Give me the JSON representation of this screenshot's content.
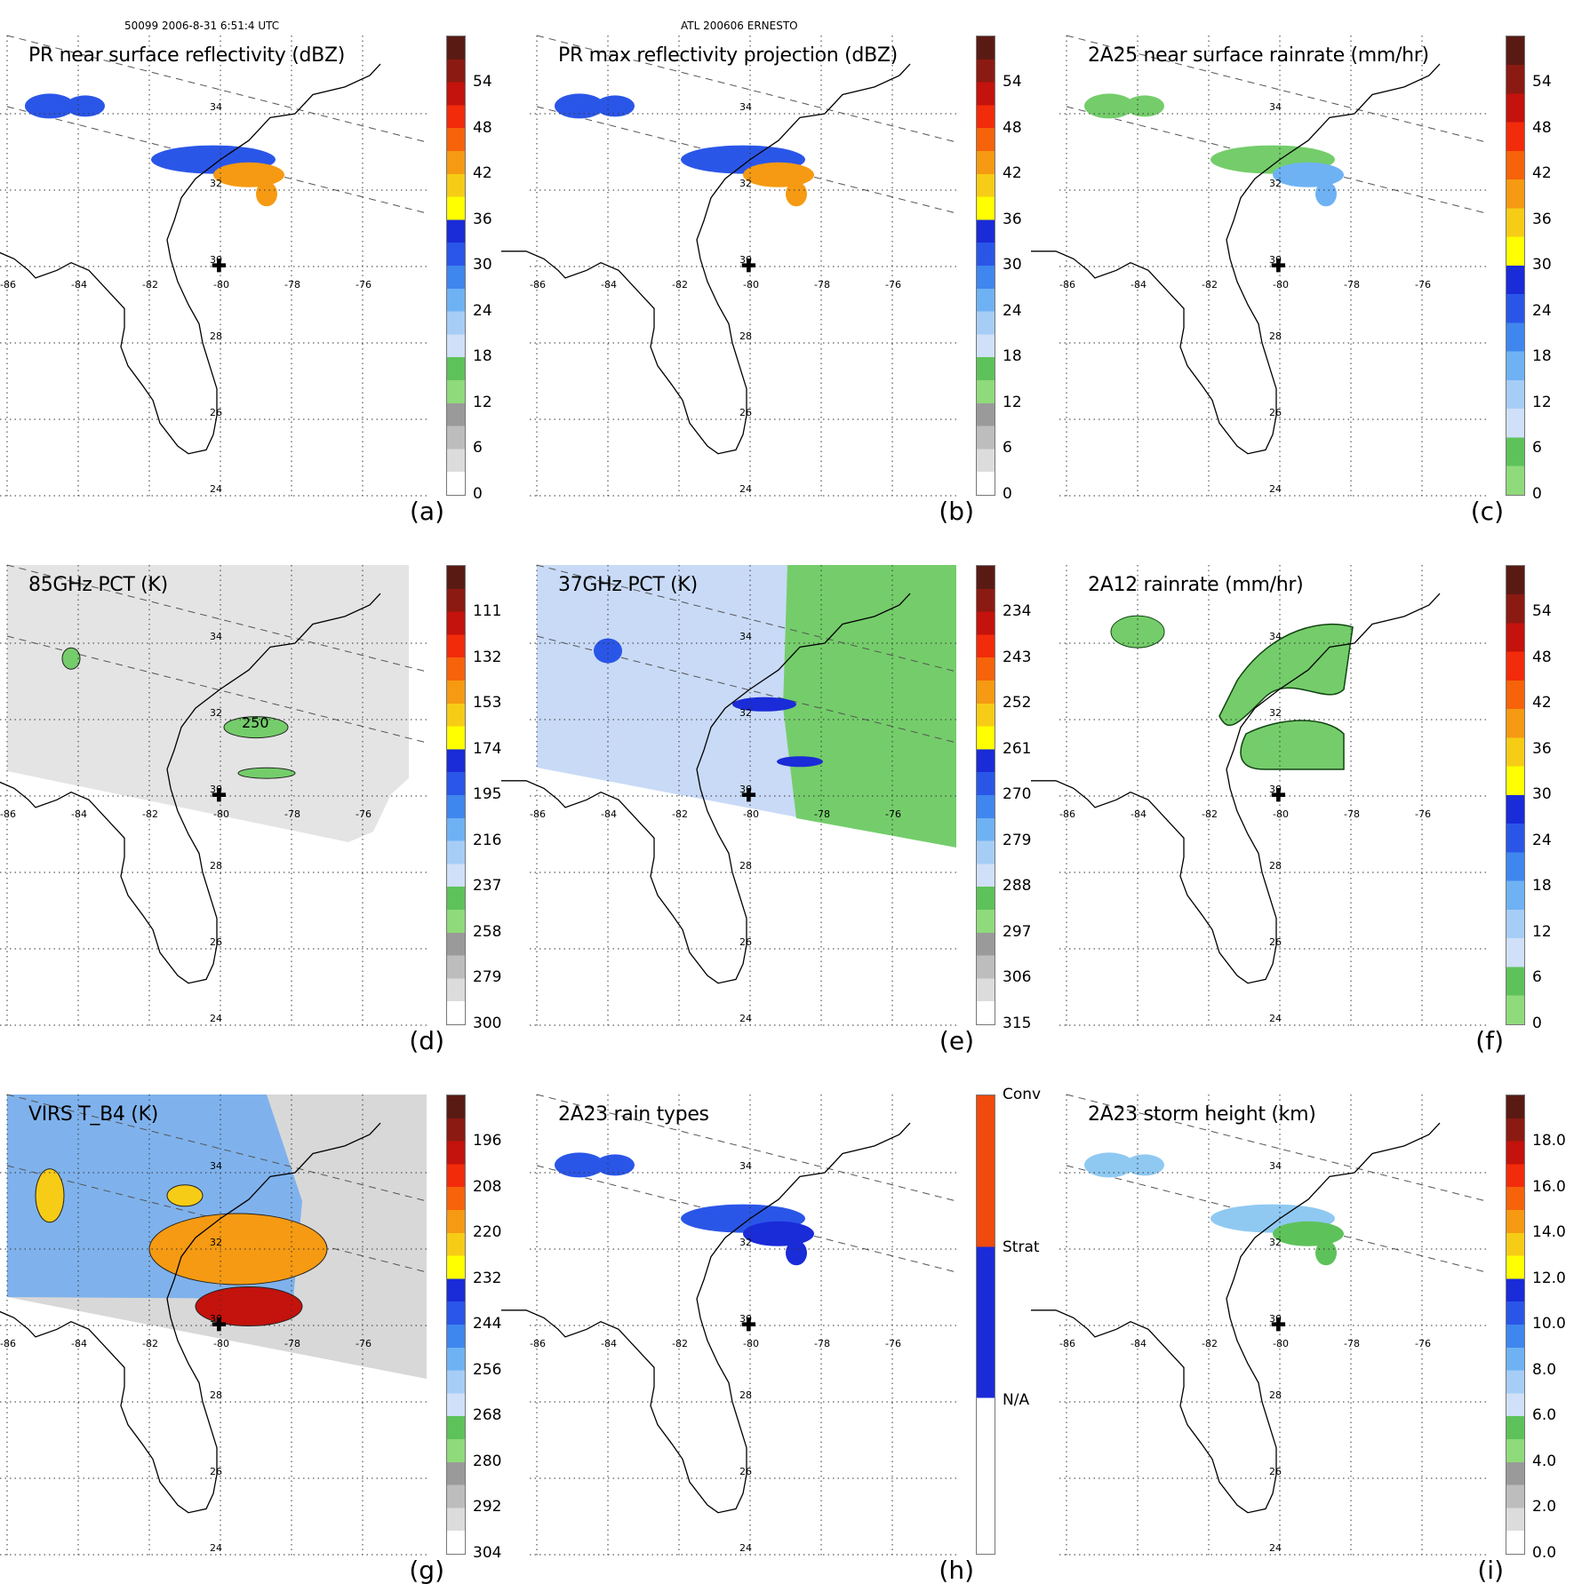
{
  "header": {
    "left": "50099 2006-8-31 6:51:4 UTC",
    "center": "ATL 200606 ERNESTO"
  },
  "map_labels": {
    "lons": [
      "-86",
      "-84",
      "-82",
      "-80",
      "-78",
      "-76"
    ],
    "lats": [
      "34",
      "32",
      "30",
      "28",
      "26",
      "24"
    ]
  },
  "panels": [
    {
      "id": "a",
      "title": "PR near surface reflectivity (dBZ)",
      "label": "(a)",
      "ticks": [
        "54",
        "48",
        "42",
        "36",
        "30",
        "24",
        "18",
        "12",
        "6",
        "0"
      ],
      "colorbar": "rain",
      "swath": "narrow"
    },
    {
      "id": "b",
      "title": "PR max reflectivity projection (dBZ)",
      "label": "(b)",
      "ticks": [
        "54",
        "48",
        "42",
        "36",
        "30",
        "24",
        "18",
        "12",
        "6",
        "0"
      ],
      "colorbar": "rain",
      "swath": "narrow"
    },
    {
      "id": "c",
      "title": "2A25 near surface rainrate (mm/hr)",
      "label": "(c)",
      "ticks": [
        "54",
        "48",
        "42",
        "36",
        "30",
        "24",
        "18",
        "12",
        "6",
        "0"
      ],
      "colorbar": "rainrate",
      "swath": "narrow"
    },
    {
      "id": "d",
      "title": "85GHz PCT (K)",
      "label": "(d)",
      "ticks": [
        "111",
        "132",
        "153",
        "174",
        "195",
        "216",
        "237",
        "258",
        "279",
        "300"
      ],
      "colorbar": "rain",
      "swath": "wide-gray",
      "contour_label": "250"
    },
    {
      "id": "e",
      "title": "37GHz PCT (K)",
      "label": "(e)",
      "ticks": [
        "234",
        "243",
        "252",
        "261",
        "270",
        "279",
        "288",
        "297",
        "306",
        "315"
      ],
      "colorbar": "rain",
      "swath": "wide-color"
    },
    {
      "id": "f",
      "title": "2A12 rainrate (mm/hr)",
      "label": "(f)",
      "ticks": [
        "54",
        "48",
        "42",
        "36",
        "30",
        "24",
        "18",
        "12",
        "6",
        "0"
      ],
      "colorbar": "rainrate",
      "swath": "none"
    },
    {
      "id": "g",
      "title": "VIRS T_B4 (K)",
      "label": "(g)",
      "ticks": [
        "196",
        "208",
        "220",
        "232",
        "244",
        "256",
        "268",
        "280",
        "292",
        "304"
      ],
      "colorbar": "rain",
      "swath": "virs"
    },
    {
      "id": "h",
      "title": "2A23 rain types",
      "label": "(h)",
      "ticks": [
        "Conv",
        "Strat",
        "N/A"
      ],
      "colorbar": "types",
      "swath": "narrow"
    },
    {
      "id": "i",
      "title": "2A23 storm height (km)",
      "label": "(i)",
      "ticks": [
        "18.0",
        "16.0",
        "14.0",
        "12.0",
        "10.0",
        "8.0",
        "6.0",
        "4.0",
        "2.0",
        "0.0"
      ],
      "colorbar": "rain",
      "swath": "narrow"
    }
  ],
  "colors": {
    "rain_scale": [
      "#5a1a14",
      "#8b1a12",
      "#c4120c",
      "#f22b0a",
      "#f6630a",
      "#f59a12",
      "#f7cc16",
      "#ffff00",
      "#1a2bd8",
      "#2a56e8",
      "#3f86ee",
      "#6eb2f4",
      "#a6cdf6",
      "#cfe0f8",
      "#5ec25a",
      "#8fda7a",
      "#9a9a9a",
      "#bdbdbd",
      "#dcdcdc",
      "#ffffff"
    ],
    "rainrate_scale": [
      "#5a1a14",
      "#8b1a12",
      "#c4120c",
      "#f22b0a",
      "#f6630a",
      "#f59a12",
      "#f7cc16",
      "#ffff00",
      "#1a2bd8",
      "#2a56e8",
      "#3f86ee",
      "#6eb2f4",
      "#a6cdf6",
      "#cfe0f8",
      "#5ec25a",
      "#8fda7a"
    ],
    "types_scale": [
      "#f04a0c",
      "#1a2bd8",
      "#ffffff"
    ]
  }
}
